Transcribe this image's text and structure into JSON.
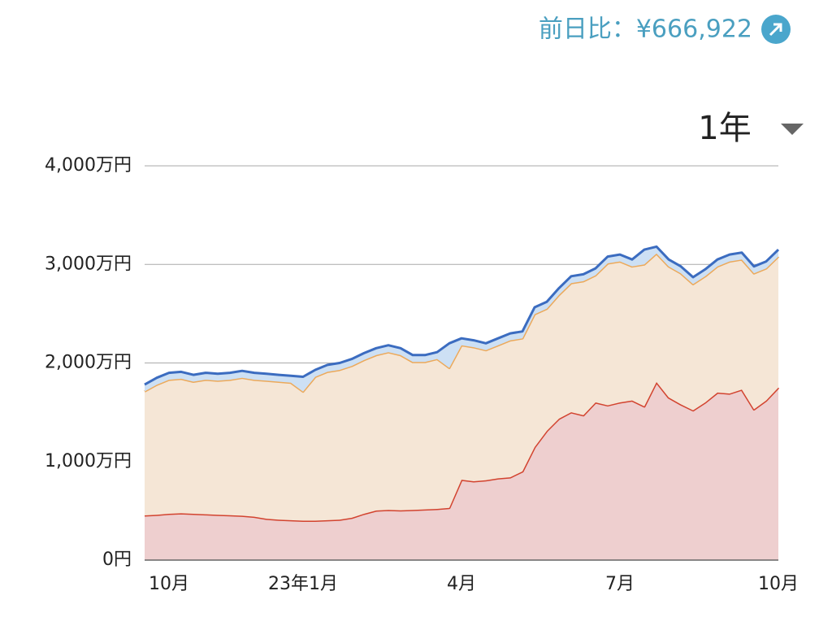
{
  "header": {
    "change": "前日比：¥666,922",
    "period": "1年"
  },
  "chart_data": {
    "type": "stacked-area",
    "categories": [
      null,
      null,
      "10月",
      null,
      null,
      null,
      null,
      null,
      null,
      null,
      null,
      null,
      null,
      "23年1月",
      null,
      null,
      null,
      null,
      null,
      null,
      null,
      null,
      null,
      null,
      null,
      null,
      "4月",
      null,
      null,
      null,
      null,
      null,
      null,
      null,
      null,
      null,
      null,
      null,
      null,
      "7月",
      null,
      null,
      null,
      null,
      null,
      null,
      null,
      null,
      null,
      null,
      null,
      null,
      "10月"
    ],
    "series": [
      {
        "color": "#d2432f",
        "fill_color": "#eecfcf",
        "values": [
          454,
          460,
          470,
          475,
          470,
          465,
          460,
          455,
          450,
          440,
          420,
          410,
          405,
          400,
          400,
          405,
          410,
          430,
          470,
          503,
          510,
          505,
          510,
          515,
          520,
          530,
          816,
          800,
          810,
          830,
          840,
          900,
          1146,
          1311,
          1435,
          1500,
          1470,
          1600,
          1570,
          1600,
          1620,
          1560,
          1806,
          1650,
          1580,
          1520,
          1600,
          1700,
          1690,
          1730,
          1530,
          1620,
          1750
        ]
      },
      {
        "color": "#eca95a",
        "fill_color": "#f5e6d6",
        "values": [
          1257,
          1320,
          1360,
          1365,
          1340,
          1365,
          1360,
          1375,
          1400,
          1390,
          1400,
          1400,
          1395,
          1310,
          1460,
          1505,
          1520,
          1540,
          1560,
          1577,
          1600,
          1575,
          1500,
          1495,
          1520,
          1420,
          1364,
          1360,
          1320,
          1350,
          1390,
          1350,
          1349,
          1239,
          1255,
          1310,
          1360,
          1290,
          1440,
          1430,
          1360,
          1440,
          1304,
          1330,
          1330,
          1280,
          1280,
          1280,
          1340,
          1320,
          1380,
          1340,
          1330
        ]
      },
      {
        "color": "#3b6cc0",
        "fill_color": "#cde0f4",
        "values": [
          70,
          70,
          70,
          70,
          70,
          70,
          70,
          70,
          70,
          70,
          70,
          70,
          70,
          150,
          70,
          70,
          70,
          70,
          70,
          70,
          70,
          70,
          70,
          70,
          70,
          250,
          70,
          70,
          70,
          70,
          70,
          70,
          70,
          70,
          70,
          70,
          70,
          70,
          70,
          70,
          70,
          150,
          70,
          70,
          70,
          70,
          70,
          70,
          70,
          70,
          70,
          70,
          70
        ]
      }
    ],
    "ylim": [
      0,
      4000
    ],
    "yticks": [
      {
        "value": 0,
        "label": "0円"
      },
      {
        "value": 1000,
        "label": "1,000万円"
      },
      {
        "value": 2000,
        "label": "2,000万円"
      },
      {
        "value": 3000,
        "label": "3,000万円"
      },
      {
        "value": 4000,
        "label": "4,000万円"
      }
    ],
    "grid": true
  }
}
